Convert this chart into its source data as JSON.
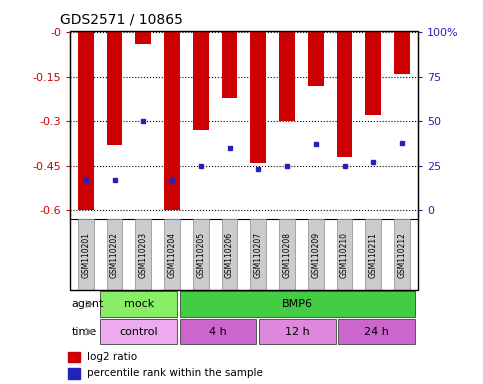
{
  "title": "GDS2571 / 10865",
  "samples": [
    "GSM110201",
    "GSM110202",
    "GSM110203",
    "GSM110204",
    "GSM110205",
    "GSM110206",
    "GSM110207",
    "GSM110208",
    "GSM110209",
    "GSM110210",
    "GSM110211",
    "GSM110212"
  ],
  "log2_ratios": [
    -0.6,
    -0.38,
    -0.04,
    -0.6,
    -0.33,
    -0.22,
    -0.44,
    -0.3,
    -0.18,
    -0.42,
    -0.28,
    -0.14
  ],
  "percentile_ranks": [
    17,
    17,
    50,
    17,
    25,
    35,
    23,
    25,
    37,
    25,
    27,
    38
  ],
  "ymin": -0.63,
  "ymax": 0.005,
  "yticks": [
    0.0,
    -0.15,
    -0.3,
    -0.45,
    -0.6
  ],
  "ytick_labels": [
    "-0",
    "-0.15",
    "-0.3",
    "-0.45",
    "-0.6"
  ],
  "y2_ticks_pct": [
    100,
    75,
    50,
    25,
    0
  ],
  "y2_tick_labels": [
    "100%",
    "75",
    "50",
    "25",
    "0"
  ],
  "bar_color": "#cc0000",
  "dot_color": "#2222bb",
  "agent_mock_color": "#88ee66",
  "agent_bmp6_color": "#44cc44",
  "time_control_color": "#eeaaee",
  "time_4h_color": "#cc66cc",
  "time_12h_color": "#dd88dd",
  "time_24h_color": "#cc66cc",
  "gray_box_color": "#cccccc",
  "bar_width": 0.55,
  "agent_groups": [
    {
      "label": "mock",
      "start": 0,
      "end": 3
    },
    {
      "label": "BMP6",
      "start": 3,
      "end": 12
    }
  ],
  "time_groups": [
    {
      "label": "control",
      "start": 0,
      "end": 3
    },
    {
      "label": "4 h",
      "start": 3,
      "end": 6
    },
    {
      "label": "12 h",
      "start": 6,
      "end": 9
    },
    {
      "label": "24 h",
      "start": 9,
      "end": 12
    }
  ]
}
